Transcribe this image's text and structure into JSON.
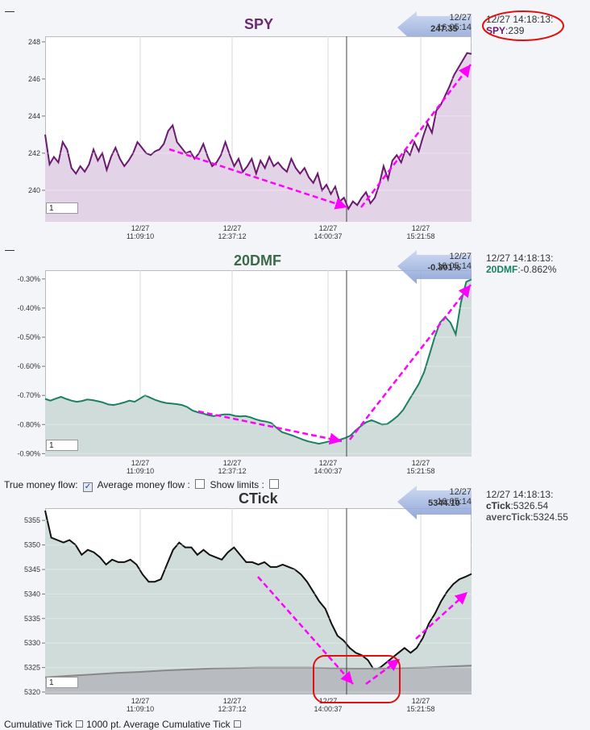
{
  "panels": [
    {
      "id": "spy",
      "title": "SPY",
      "title_color": "#6a2a74",
      "line_color": "#6a1a6e",
      "fill_color": "#e3d3e6",
      "badge": {
        "time": "12/27 16:05:14",
        "value": "247.35"
      },
      "info": {
        "time": "12/27 14:18:13:",
        "label": "SPY",
        "value": ":239",
        "label_color": "#6a1a6e"
      },
      "info_circled": true,
      "spin_value": "1"
    },
    {
      "id": "dmf",
      "title": "20DMF",
      "title_color": "#3a6a48",
      "line_color": "#1a8060",
      "fill_color": "#cfdcd9",
      "badge": {
        "time": "12/27 16:05:14",
        "value": "-0.301%"
      },
      "info": {
        "time": "12/27 14:18:13:",
        "label": "20DMF",
        "value": ":-0.862%",
        "label_color": "#1a8060"
      },
      "info_circled": false,
      "spin_value": "1"
    },
    {
      "id": "ctick",
      "title": "CTick",
      "title_color": "#333333",
      "line_color": "#111111",
      "fill_color": "#cfdcd9",
      "badge": {
        "time": "12/27 16:05:14",
        "value": "5344.10"
      },
      "info": {
        "time": "12/27 14:18:13:",
        "label": "cTick",
        "value": ":5326.54",
        "label_color": "#111111",
        "label2": "avercTick",
        "value2": ":5324.55"
      },
      "info_circled": false,
      "spin_value": "1"
    }
  ],
  "controls": {
    "true_money_flow": "True money flow:",
    "average_money_flow": "Average money flow :",
    "show_limits": "Show limits :"
  },
  "footer_text": "Cumulative Tick  ☐  1000 pt. Average Cumulative Tick  ☐",
  "accent_colors": {
    "arrow": "#ff00ff",
    "circle": "#e01010",
    "badge": "#8ea6d8"
  },
  "chart_data": [
    {
      "type": "area",
      "title": "SPY",
      "x_ticks": [
        "12/27 11:09:10",
        "12/27 12:37:12",
        "12/27 14:00:37",
        "12/27 15:21:58"
      ],
      "y_ticks": [
        "240",
        "242",
        "244",
        "246",
        "248"
      ],
      "ylim": [
        238.3,
        248.3
      ],
      "series": [
        {
          "name": "SPY",
          "values": [
            243.0,
            241.4,
            241.8,
            241.5,
            242.6,
            242.2,
            241.2,
            240.9,
            241.3,
            241.0,
            241.4,
            242.2,
            241.6,
            242.0,
            241.1,
            241.8,
            242.3,
            241.7,
            241.3,
            241.6,
            242.0,
            242.6,
            242.3,
            242.0,
            241.9,
            242.1,
            242.2,
            242.5,
            243.2,
            243.5,
            242.6,
            242.3,
            242.0,
            242.1,
            241.7,
            242.0,
            242.5,
            241.8,
            241.3,
            241.5,
            241.9,
            242.6,
            241.9,
            241.3,
            241.7,
            241.0,
            241.3,
            241.7,
            240.9,
            241.6,
            241.2,
            241.8,
            241.3,
            241.5,
            241.2,
            241.0,
            241.7,
            241.2,
            240.9,
            241.2,
            240.7,
            240.4,
            240.9,
            240.0,
            240.3,
            239.8,
            240.2,
            239.4,
            239.6,
            239.0,
            239.4,
            239.2,
            239.6,
            239.9,
            239.3,
            239.6,
            240.3,
            241.3,
            240.6,
            241.6,
            241.9,
            241.5,
            242.2,
            241.9,
            242.6,
            242.1,
            242.9,
            243.6,
            243.1,
            244.3,
            244.6,
            245.1,
            245.6,
            246.2,
            246.6,
            247.0,
            247.4,
            247.35
          ]
        }
      ],
      "crosshair_time": "12/27 14:18:13"
    },
    {
      "type": "area",
      "title": "20DMF",
      "x_ticks": [
        "12/27 11:09:10",
        "12/27 12:37:12",
        "12/27 14:00:37",
        "12/27 15:21:58"
      ],
      "y_ticks": [
        "-0.30%",
        "-0.40%",
        "-0.50%",
        "-0.60%",
        "-0.70%",
        "-0.80%",
        "-0.90%"
      ],
      "ylim": [
        -0.91,
        -0.27
      ],
      "series": [
        {
          "name": "20DMF",
          "values": [
            -0.712,
            -0.718,
            -0.711,
            -0.705,
            -0.712,
            -0.718,
            -0.722,
            -0.719,
            -0.714,
            -0.716,
            -0.72,
            -0.724,
            -0.731,
            -0.733,
            -0.729,
            -0.724,
            -0.718,
            -0.722,
            -0.711,
            -0.7,
            -0.708,
            -0.716,
            -0.722,
            -0.726,
            -0.728,
            -0.73,
            -0.733,
            -0.74,
            -0.752,
            -0.758,
            -0.762,
            -0.768,
            -0.771,
            -0.768,
            -0.765,
            -0.765,
            -0.77,
            -0.772,
            -0.771,
            -0.775,
            -0.782,
            -0.787,
            -0.79,
            -0.795,
            -0.812,
            -0.826,
            -0.832,
            -0.838,
            -0.845,
            -0.852,
            -0.858,
            -0.862,
            -0.866,
            -0.862,
            -0.858,
            -0.855,
            -0.852,
            -0.846,
            -0.838,
            -0.82,
            -0.805,
            -0.792,
            -0.785,
            -0.792,
            -0.8,
            -0.798,
            -0.785,
            -0.77,
            -0.75,
            -0.72,
            -0.69,
            -0.66,
            -0.62,
            -0.56,
            -0.5,
            -0.45,
            -0.43,
            -0.45,
            -0.49,
            -0.38,
            -0.31,
            -0.301
          ]
        }
      ],
      "crosshair_time": "12/27 14:18:13"
    },
    {
      "type": "area",
      "title": "CTick",
      "x_ticks": [
        "12/27 11:09:10",
        "12/27 12:37:12",
        "12/27 14:00:37",
        "12/27 15:21:58"
      ],
      "y_ticks": [
        "5320",
        "5325",
        "5330",
        "5335",
        "5340",
        "5345",
        "5350",
        "5355"
      ],
      "ylim": [
        5319.5,
        5357.5
      ],
      "series": [
        {
          "name": "cTick",
          "values": [
            5357.0,
            5351.5,
            5351.0,
            5350.5,
            5351.0,
            5350.0,
            5348.0,
            5349.0,
            5348.5,
            5347.5,
            5346.0,
            5347.0,
            5346.5,
            5346.5,
            5347.0,
            5346.0,
            5344.0,
            5342.5,
            5342.5,
            5343.0,
            5346.0,
            5349.0,
            5350.5,
            5349.5,
            5349.5,
            5348.0,
            5349.0,
            5348.0,
            5347.5,
            5347.0,
            5348.5,
            5349.5,
            5348.0,
            5346.5,
            5346.5,
            5346.0,
            5346.5,
            5345.5,
            5345.5,
            5346.0,
            5345.5,
            5345.0,
            5344.0,
            5342.5,
            5340.5,
            5338.5,
            5337.0,
            5334.0,
            5331.5,
            5330.5,
            5329.0,
            5328.0,
            5327.5,
            5326.5,
            5324.5,
            5325.0,
            5326.0,
            5327.0,
            5328.0,
            5329.0,
            5328.0,
            5329.0,
            5331.0,
            5334.0,
            5336.0,
            5338.5,
            5340.5,
            5342.0,
            5343.0,
            5343.5,
            5344.1
          ]
        },
        {
          "name": "avercTick",
          "values": [
            5323.0,
            5323.3,
            5323.6,
            5323.9,
            5324.1,
            5324.4,
            5324.6,
            5324.8,
            5324.9,
            5325.0,
            5325.0,
            5325.0,
            5324.9,
            5324.8,
            5324.8,
            5324.9,
            5325.0,
            5325.2,
            5325.4
          ]
        }
      ],
      "crosshair_time": "12/27 14:18:13"
    }
  ]
}
